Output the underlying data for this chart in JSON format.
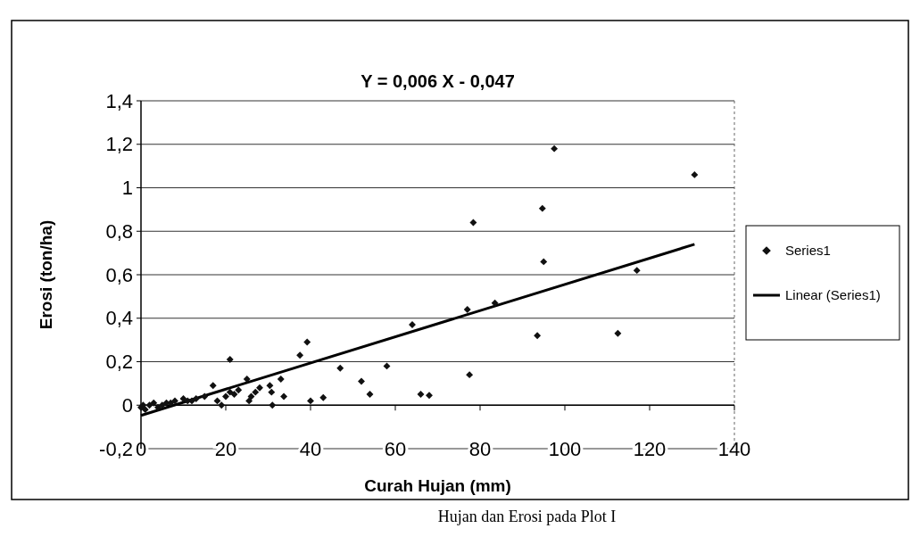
{
  "chart_data": {
    "type": "scatter",
    "title": "Y = 0,006 X - 0,047",
    "xlabel": "Curah Hujan (mm)",
    "ylabel": "Erosi (ton/ha)",
    "xlim": [
      0,
      140
    ],
    "xticks": [
      0,
      20,
      40,
      60,
      80,
      100,
      120,
      140
    ],
    "ylim": [
      -0.2,
      1.4
    ],
    "yticks": [
      {
        "value": -0.2,
        "label": "-0,2"
      },
      0,
      {
        "value": 0.2,
        "label": "0,2"
      },
      {
        "value": 0.4,
        "label": "0,4"
      },
      {
        "value": 0.6,
        "label": "0,6"
      },
      {
        "value": 0.8,
        "label": "0,8"
      },
      1,
      {
        "value": 1.2,
        "label": "1,2"
      },
      {
        "value": 1.4,
        "label": "1,4"
      }
    ],
    "grid": "y",
    "legend": "right",
    "marker": "diamond",
    "annotations": [
      "Hujan dan Erosi pada Plot I"
    ],
    "series": [
      {
        "name": "Series1",
        "color": "#111111",
        "x": [
          0,
          0.5,
          1,
          2,
          3,
          4,
          5,
          6,
          7,
          8,
          10,
          11,
          12,
          13,
          15,
          17,
          18,
          19,
          20,
          21,
          22,
          23,
          25,
          25.5,
          26,
          27,
          28,
          30.4,
          30.8,
          31,
          33,
          33.7,
          21,
          37.5,
          39.2,
          40,
          43,
          47,
          52,
          54,
          58,
          64,
          66,
          68,
          77,
          77.5,
          78.4,
          83.5,
          93.5,
          94.7,
          95,
          97.5,
          112.5,
          117,
          130.6
        ],
        "values": [
          -0.01,
          0,
          -0.02,
          0,
          0.01,
          -0.01,
          0,
          0.01,
          0.01,
          0.02,
          0.03,
          0.02,
          0.02,
          0.03,
          0.04,
          0.09,
          0.02,
          0,
          0.04,
          0.06,
          0.05,
          0.07,
          0.12,
          0.02,
          0.04,
          0.06,
          0.08,
          0.09,
          0.06,
          0,
          0.12,
          0.04,
          0.21,
          0.23,
          0.29,
          0.02,
          0.035,
          0.17,
          0.11,
          0.05,
          0.18,
          0.37,
          0.05,
          0.045,
          0.44,
          0.14,
          0.84,
          0.47,
          0.32,
          0.905,
          0.66,
          1.18,
          0.33,
          0.62,
          1.06
        ]
      },
      {
        "name": "Linear (Series1)",
        "type": "line",
        "color": "#000000",
        "marker": "none",
        "line_style": "solid",
        "x": [
          0,
          130.6
        ],
        "values": [
          -0.047,
          0.74
        ]
      }
    ]
  }
}
